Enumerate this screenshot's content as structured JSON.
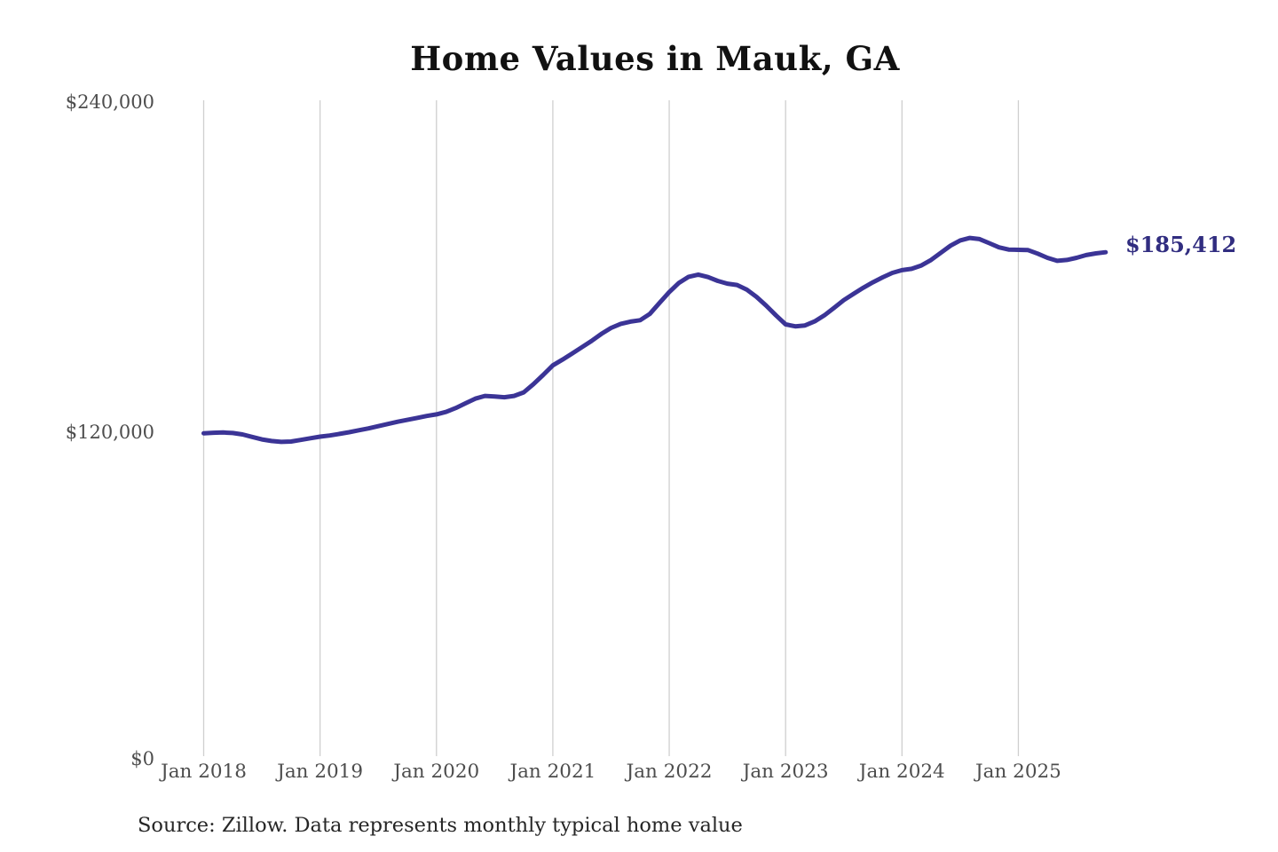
{
  "page": {
    "background_color": "#ffffff"
  },
  "chart_data": {
    "type": "line",
    "title": "Home Values in Mauk, GA",
    "series_name": "Monthly typical home value",
    "unit": "USD",
    "x_start": "Jan 2018",
    "x_end": "Oct 2025",
    "x_interval": "monthly",
    "values": [
      119600,
      119800,
      119900,
      119700,
      119200,
      118300,
      117400,
      116800,
      116500,
      116600,
      117200,
      117800,
      118400,
      118800,
      119400,
      120000,
      120700,
      121400,
      122200,
      123000,
      123800,
      124500,
      125200,
      125900,
      126500,
      127400,
      128800,
      130500,
      132200,
      133200,
      133000,
      132700,
      133200,
      134500,
      137500,
      140800,
      144300,
      146400,
      148600,
      150900,
      153200,
      155700,
      157900,
      159400,
      160200,
      160700,
      163000,
      167000,
      170900,
      174300,
      176500,
      177300,
      176400,
      175000,
      174000,
      173500,
      171800,
      169200,
      166000,
      162500,
      159200,
      158500,
      158800,
      160300,
      162500,
      165200,
      168000,
      170300,
      172500,
      174500,
      176300,
      177900,
      178900,
      179400,
      180600,
      182600,
      185200,
      187800,
      189700,
      190600,
      190200,
      188700,
      187200,
      186400,
      186300,
      186200,
      184900,
      183400,
      182300,
      182600,
      183400,
      184400,
      185000,
      185412
    ],
    "end_value": 185412,
    "end_label": "$185,412",
    "ylim": [
      0,
      240000
    ],
    "y_ticks": [
      {
        "label": "$240,000",
        "value": 240000
      },
      {
        "label": "$120,000",
        "value": 120000
      },
      {
        "label": "$0",
        "value": 0
      }
    ],
    "x_ticks": [
      {
        "label": "Jan 2018",
        "month_index": 0
      },
      {
        "label": "Jan 2019",
        "month_index": 12
      },
      {
        "label": "Jan 2020",
        "month_index": 24
      },
      {
        "label": "Jan 2021",
        "month_index": 36
      },
      {
        "label": "Jan 2022",
        "month_index": 48
      },
      {
        "label": "Jan 2023",
        "month_index": 60
      },
      {
        "label": "Jan 2024",
        "month_index": 72
      },
      {
        "label": "Jan 2025",
        "month_index": 84
      }
    ],
    "grid": "vertical-yearly",
    "legend": "none",
    "line_color": "#3b3496",
    "grid_color": "#cfcfcf",
    "end_label_color": "#312d80",
    "axis_label_color": "#4d4d4d",
    "source_note": "Source: Zillow. Data represents monthly typical home value"
  }
}
